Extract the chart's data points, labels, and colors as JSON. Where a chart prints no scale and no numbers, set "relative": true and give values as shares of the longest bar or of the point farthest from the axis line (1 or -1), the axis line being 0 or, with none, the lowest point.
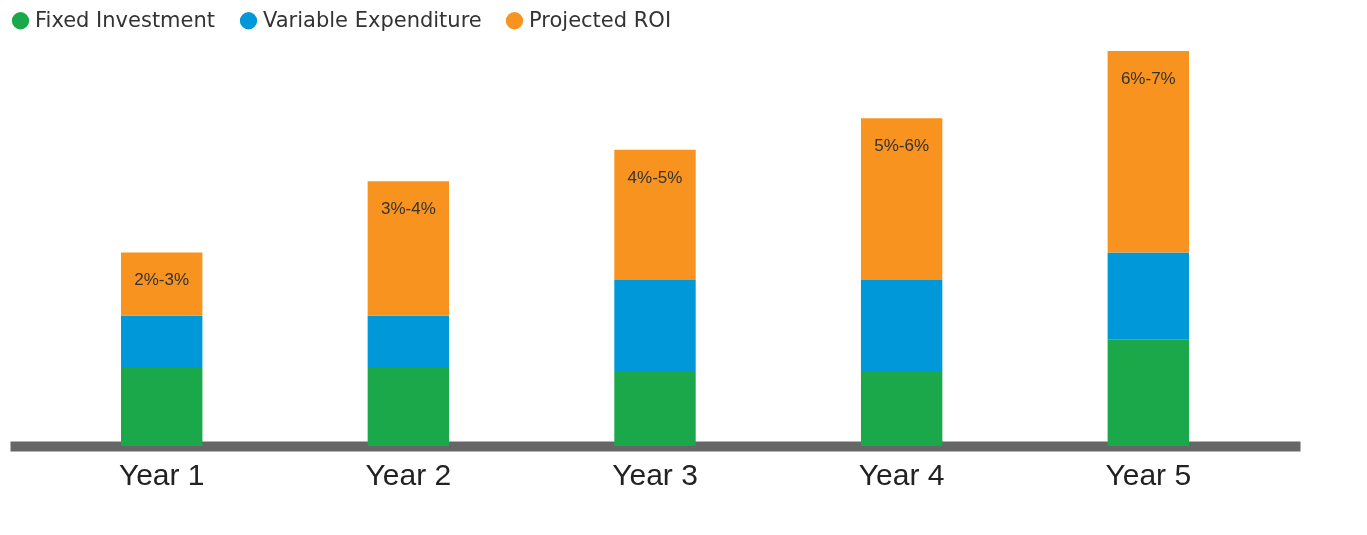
{
  "chart_data": {
    "type": "bar",
    "stacked": true,
    "relative": true,
    "legend": "top left",
    "categories": [
      "Year 1",
      "Year 2",
      "Year 3",
      "Year 4",
      "Year 5"
    ],
    "series": [
      {
        "name": "Fixed Investment",
        "color": "#1aa84a",
        "values": [
          0.2,
          0.2,
          0.19,
          0.19,
          0.27
        ]
      },
      {
        "name": "Variable Expenditure",
        "color": "#0098d9",
        "values": [
          0.13,
          0.13,
          0.23,
          0.23,
          0.22
        ]
      },
      {
        "name": "Projected ROI",
        "color": "#f7931e",
        "values": [
          0.16,
          0.34,
          0.33,
          0.41,
          0.51
        ]
      }
    ],
    "annotations": [
      {
        "text": "2%-3%",
        "x": "Year 1",
        "y": 0.49
      },
      {
        "text": "3%-4%",
        "x": "Year 2",
        "y": 0.67
      },
      {
        "text": "4%-5%",
        "x": "Year 3",
        "y": 0.75
      },
      {
        "text": "5%-6%",
        "x": "Year 4",
        "y": 0.83
      },
      {
        "text": "6%-7%",
        "x": "Year 5",
        "y": 1
      }
    ]
  }
}
